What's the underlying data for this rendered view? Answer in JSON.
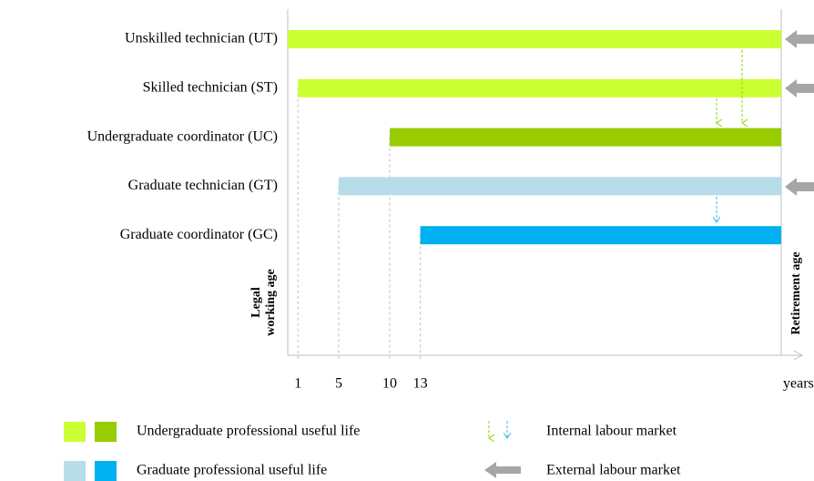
{
  "chart_data": {
    "type": "range-bar",
    "categories": [
      "Unskilled technician (UT)",
      "Skilled technician (ST)",
      "Undergraduate coordinator (UC)",
      "Graduate technician (GT)",
      "Graduate coordinator (GC)"
    ],
    "starts": [
      0,
      1,
      10,
      5,
      13
    ],
    "ends": [
      48.4,
      48.4,
      48.4,
      48.4,
      48.4
    ],
    "colors": [
      "#ccff33",
      "#ccff33",
      "#99cc00",
      "#b7dde8",
      "#00b0f0"
    ],
    "xlim": [
      0,
      48.4
    ],
    "xticks": [
      1,
      5,
      10,
      13
    ],
    "xlabel": "years",
    "start_annotation": [
      "Legal",
      "working age"
    ],
    "end_annotation": "Retirement age",
    "legend": [
      {
        "label": "Undergraduate professional useful life",
        "colors": [
          "#ccff33",
          "#99cc00"
        ]
      },
      {
        "label": "Graduate professional useful life",
        "colors": [
          "#b7dde8",
          "#00b0f0"
        ]
      },
      {
        "label": "Internal labour market"
      },
      {
        "label": "External labour market"
      }
    ]
  }
}
